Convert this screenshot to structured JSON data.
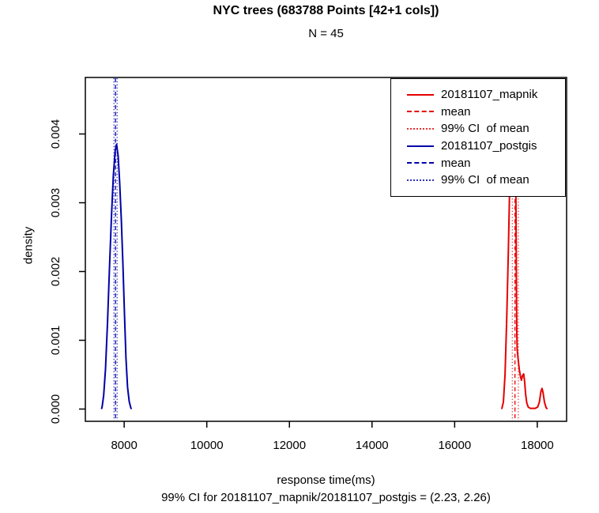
{
  "title": "NYC trees (683788 Points [42+1 cols])",
  "subtitle": "N = 45",
  "xlabel": "response time(ms)",
  "ylabel": "density",
  "caption": "99% CI for 20181107_mapnik/20181107_postgis = (2.23, 2.26)",
  "legend": {
    "entries": [
      {
        "label": "20181107_mapnik",
        "color": "#e60000",
        "style": "solid"
      },
      {
        "label": "mean",
        "color": "#e60000",
        "style": "dashed"
      },
      {
        "label": "99% CI  of mean",
        "color": "#e60000",
        "style": "dotted"
      },
      {
        "label": "20181107_postgis",
        "color": "#0000a8",
        "style": "solid"
      },
      {
        "label": "mean",
        "color": "#0000a8",
        "style": "dashed"
      },
      {
        "label": "99% CI  of mean",
        "color": "#0000a8",
        "style": "dotted"
      }
    ]
  },
  "chart_data": {
    "type": "line",
    "title": "NYC trees (683788 Points [42+1 cols])",
    "subtitle": "N = 45",
    "xlabel": "response time(ms)",
    "ylabel": "density",
    "footnote": "99% CI for 20181107_mapnik/20181107_postgis = (2.23, 2.26)",
    "xlim": [
      7060,
      18710
    ],
    "ylim": [
      0,
      0.00482
    ],
    "grid": false,
    "legend_position": "topright",
    "xticks": [
      8000,
      10000,
      12000,
      14000,
      16000,
      18000
    ],
    "yticks": [
      0.0,
      0.001,
      0.002,
      0.003,
      0.004
    ],
    "ytick_labels": [
      "0.000",
      "0.001",
      "0.002",
      "0.003",
      "0.004"
    ],
    "series": [
      {
        "name": "20181107_postgis",
        "color": "#0000a8",
        "points": [
          [
            7450,
            0
          ],
          [
            7465,
            3e-05
          ],
          [
            7503,
            0.0002
          ],
          [
            7547,
            0.00058
          ],
          [
            7598,
            0.00127
          ],
          [
            7642,
            0.00201
          ],
          [
            7694,
            0.00281
          ],
          [
            7738,
            0.00339
          ],
          [
            7784,
            0.00376
          ],
          [
            7815,
            0.00385
          ],
          [
            7853,
            0.00368
          ],
          [
            7891,
            0.0033
          ],
          [
            7930,
            0.00276
          ],
          [
            7968,
            0.00212
          ],
          [
            8006,
            0.00139
          ],
          [
            8044,
            0.00074
          ],
          [
            8082,
            0.00032
          ],
          [
            8121,
            0.00011
          ],
          [
            8160,
            2e-05
          ],
          [
            8175,
            0
          ]
        ],
        "mean": 7790,
        "ci99": [
          7752,
          7830
        ]
      },
      {
        "name": "20181107_mapnik",
        "color": "#e60000",
        "points": [
          [
            17140,
            0
          ],
          [
            17180,
            0.0001
          ],
          [
            17220,
            0.0005
          ],
          [
            17260,
            0.0013
          ],
          [
            17300,
            0.0023
          ],
          [
            17330,
            0.0032
          ],
          [
            17355,
            0.0041
          ],
          [
            17385,
            0.00452
          ],
          [
            17420,
            0.0046
          ],
          [
            17450,
            0.00458
          ],
          [
            17460,
            0.00448
          ],
          [
            17475,
            0.0038
          ],
          [
            17485,
            0.0028
          ],
          [
            17495,
            0.0018
          ],
          [
            17505,
            0.0011
          ],
          [
            17515,
            0.00086
          ],
          [
            17545,
            0.00068
          ],
          [
            17565,
            0.00058
          ],
          [
            17590,
            0.00048
          ],
          [
            17615,
            0.00042
          ],
          [
            17645,
            0.00049
          ],
          [
            17672,
            0.00051
          ],
          [
            17695,
            0.0004
          ],
          [
            17718,
            0.00022
          ],
          [
            17745,
            9e-05
          ],
          [
            17780,
            3e-05
          ],
          [
            17830,
            1e-05
          ],
          [
            17950,
            1e-05
          ],
          [
            18010,
            3e-05
          ],
          [
            18050,
            0.0001
          ],
          [
            18090,
            0.00026
          ],
          [
            18115,
            0.0003
          ],
          [
            18140,
            0.00024
          ],
          [
            18175,
            0.0001
          ],
          [
            18215,
            2e-05
          ],
          [
            18245,
            0
          ]
        ],
        "mean": 17460,
        "ci99": [
          17396,
          17541
        ]
      }
    ],
    "vlines": [
      {
        "series": "20181107_postgis",
        "kind": "mean",
        "x": 7790,
        "style": "dashed",
        "color": "#0000a8"
      },
      {
        "series": "20181107_postgis",
        "kind": "ci-low",
        "x": 7752,
        "style": "dotted",
        "color": "#0000a8"
      },
      {
        "series": "20181107_postgis",
        "kind": "ci-high",
        "x": 7830,
        "style": "dotted",
        "color": "#0000a8"
      },
      {
        "series": "20181107_mapnik",
        "kind": "mean",
        "x": 17460,
        "style": "dashed",
        "color": "#e60000"
      },
      {
        "series": "20181107_mapnik",
        "kind": "ci-low",
        "x": 17396,
        "style": "dotted",
        "color": "#e60000"
      },
      {
        "series": "20181107_mapnik",
        "kind": "ci-high",
        "x": 17541,
        "style": "dotted",
        "color": "#e60000"
      }
    ]
  }
}
